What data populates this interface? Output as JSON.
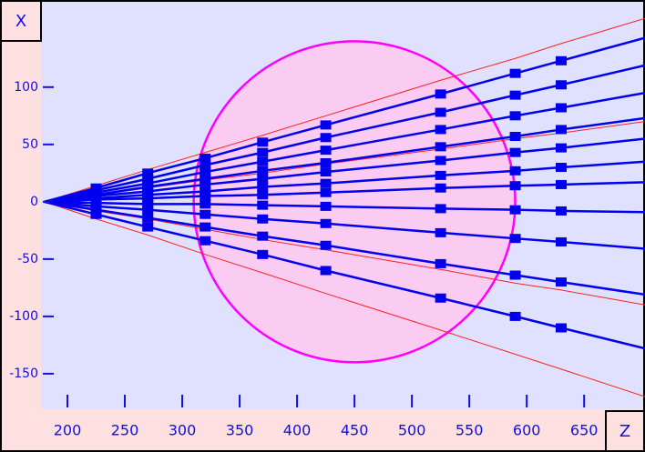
{
  "chart_data": {
    "type": "line",
    "xlabel": "Z",
    "ylabel": "X",
    "x": [
      180,
      225,
      270,
      320,
      370,
      425,
      525,
      590,
      630,
      703
    ],
    "xlim": [
      177,
      703
    ],
    "ylim": [
      -181,
      176
    ],
    "xticks": [
      200,
      250,
      300,
      350,
      400,
      450,
      500,
      550,
      600,
      650
    ],
    "yticks": [
      -150,
      -100,
      -50,
      0,
      50,
      100
    ],
    "circle": {
      "center": [
        450,
        0
      ],
      "radius": 140,
      "color": "#ff00ff"
    },
    "series": [
      {
        "color": "#ff2020",
        "markers": false,
        "values": [
          0,
          14,
          28,
          43,
          58,
          75,
          106,
          125,
          138,
          160
        ]
      },
      {
        "color": "#ff2020",
        "markers": false,
        "values": [
          0,
          -15,
          -29,
          -46,
          -62,
          -80,
          -112,
          -133,
          -146,
          -170
        ]
      },
      {
        "color": "#ff2020",
        "markers": false,
        "values": [
          0,
          6,
          12,
          19,
          25,
          33,
          46,
          55,
          60,
          70
        ]
      },
      {
        "color": "#ff2020",
        "markers": false,
        "values": [
          0,
          -8,
          -15,
          -24,
          -33,
          -42,
          -59,
          -71,
          -77,
          -90
        ]
      },
      {
        "color": "#0000ee",
        "markers": true,
        "values": [
          0,
          12,
          25,
          38,
          52,
          67,
          94,
          112,
          123,
          143
        ]
      },
      {
        "color": "#0000ee",
        "markers": true,
        "values": [
          0,
          10,
          20,
          32,
          43,
          56,
          78,
          93,
          102,
          119
        ]
      },
      {
        "color": "#0000ee",
        "markers": true,
        "values": [
          0,
          8,
          16,
          26,
          35,
          45,
          63,
          75,
          82,
          95
        ]
      },
      {
        "color": "#0000ee",
        "markers": true,
        "values": [
          0,
          6,
          13,
          20,
          27,
          34,
          48,
          57,
          63,
          73
        ]
      },
      {
        "color": "#0000ee",
        "markers": true,
        "values": [
          0,
          5,
          9,
          15,
          20,
          26,
          36,
          43,
          47,
          55
        ]
      },
      {
        "color": "#0000ee",
        "markers": true,
        "values": [
          0,
          3,
          6,
          9,
          13,
          16,
          23,
          27,
          30,
          35
        ]
      },
      {
        "color": "#0000ee",
        "markers": true,
        "values": [
          0,
          2,
          3,
          5,
          6,
          8,
          12,
          14,
          15,
          17
        ]
      },
      {
        "color": "#0000ee",
        "markers": true,
        "values": [
          0,
          -1,
          -2,
          -2,
          -3,
          -4,
          -6,
          -7,
          -8,
          -9
        ]
      },
      {
        "color": "#0000ee",
        "markers": true,
        "values": [
          0,
          -4,
          -7,
          -11,
          -15,
          -19,
          -27,
          -32,
          -35,
          -41
        ]
      },
      {
        "color": "#0000ee",
        "markers": true,
        "values": [
          0,
          -7,
          -14,
          -22,
          -30,
          -38,
          -54,
          -64,
          -70,
          -81
        ]
      },
      {
        "color": "#0000ee",
        "markers": true,
        "values": [
          0,
          -11,
          -22,
          -34,
          -46,
          -60,
          -84,
          -100,
          -110,
          -128
        ]
      }
    ]
  }
}
